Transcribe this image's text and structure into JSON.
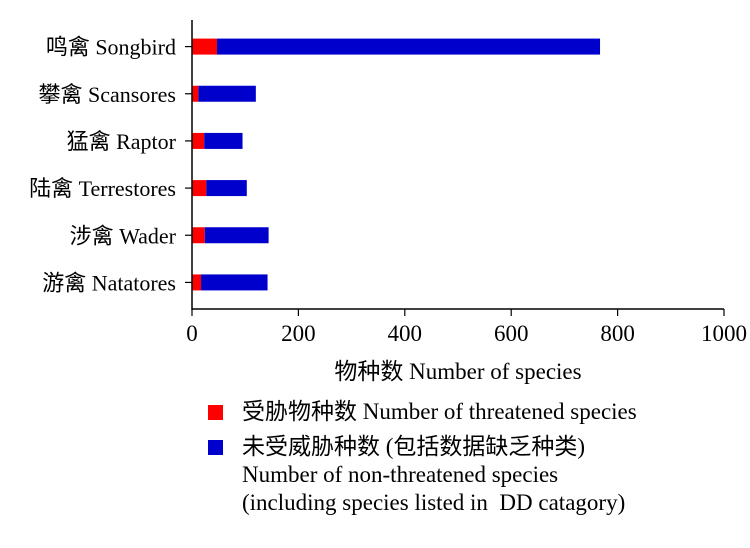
{
  "chart_data": {
    "type": "bar",
    "orientation": "horizontal",
    "stacked": true,
    "categories": [
      "鸣禽 Songbird",
      "攀禽 Scansores",
      "猛禽 Raptor",
      "陆禽 Terrestores",
      "涉禽 Wader",
      "游禽 Natatores"
    ],
    "series": [
      {
        "name": "受胁物种数 Number of threatened species",
        "color": "#ff0000",
        "values": [
          47,
          12,
          23,
          27,
          24,
          17
        ]
      },
      {
        "name": "未受威胁种数 (包括数据缺乏种类) Number of non-threatened species (including species listed in  DD catagory)",
        "name_lines": [
          "未受威胁种数 (包括数据缺乏种类)",
          "Number of non-threatened species",
          "(including species listed in  DD catagory)"
        ],
        "color": "#0000cc",
        "values": [
          720,
          108,
          72,
          76,
          120,
          125
        ]
      }
    ],
    "xlabel": "物种数 Number of species",
    "ylabel": "",
    "xlim": [
      0,
      1000
    ],
    "xticks": [
      0,
      200,
      400,
      600,
      800,
      1000
    ],
    "grid": false,
    "legend_position": "bottom"
  }
}
